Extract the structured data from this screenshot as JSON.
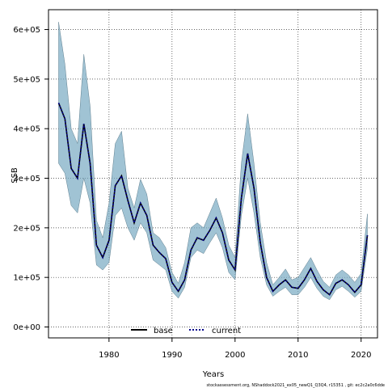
{
  "chart_data": {
    "type": "area",
    "xlabel": "Years",
    "ylabel": "SSB",
    "xlim": [
      1970.4,
      2022.6
    ],
    "ylim": [
      -22000,
      640000
    ],
    "x_ticks": [
      1980,
      1990,
      2000,
      2010,
      2020
    ],
    "x_tick_labels": [
      "1980",
      "1990",
      "2000",
      "2010",
      "2020"
    ],
    "y_ticks": [
      0,
      100000,
      200000,
      300000,
      400000,
      500000,
      600000
    ],
    "y_tick_labels": [
      "0e+00",
      "1e+05",
      "2e+05",
      "3e+05",
      "4e+05",
      "5e+05",
      "6e+05"
    ],
    "grid": true,
    "legend_position": "bottom",
    "x": [
      1972,
      1973,
      1974,
      1975,
      1976,
      1977,
      1978,
      1979,
      1980,
      1981,
      1982,
      1983,
      1984,
      1985,
      1986,
      1987,
      1988,
      1989,
      1990,
      1991,
      1992,
      1993,
      1994,
      1995,
      1996,
      1997,
      1998,
      1999,
      2000,
      2001,
      2002,
      2003,
      2004,
      2005,
      2006,
      2007,
      2008,
      2009,
      2010,
      2011,
      2012,
      2013,
      2014,
      2015,
      2016,
      2017,
      2018,
      2019,
      2020,
      2021
    ],
    "series": [
      {
        "name": "base",
        "style": "solid",
        "color": "#000000",
        "values": [
          452000,
          420000,
          320000,
          300000,
          410000,
          330000,
          165000,
          140000,
          175000,
          285000,
          305000,
          255000,
          210000,
          250000,
          225000,
          165000,
          150000,
          138000,
          90000,
          72000,
          95000,
          155000,
          180000,
          175000,
          195000,
          220000,
          190000,
          135000,
          115000,
          260000,
          350000,
          280000,
          170000,
          100000,
          72000,
          85000,
          95000,
          80000,
          78000,
          95000,
          118000,
          92000,
          75000,
          65000,
          88000,
          95000,
          85000,
          70000,
          85000,
          185000
        ]
      },
      {
        "name": "current",
        "style": "dotted",
        "color": "#00008b",
        "values": [
          452000,
          420000,
          320000,
          300000,
          410000,
          330000,
          165000,
          140000,
          175000,
          285000,
          305000,
          255000,
          210000,
          250000,
          225000,
          165000,
          150000,
          138000,
          90000,
          72000,
          95000,
          155000,
          180000,
          175000,
          195000,
          220000,
          190000,
          135000,
          115000,
          260000,
          350000,
          280000,
          170000,
          100000,
          72000,
          85000,
          95000,
          80000,
          78000,
          95000,
          118000,
          92000,
          75000,
          65000,
          88000,
          95000,
          85000,
          70000,
          85000,
          185000
        ]
      }
    ],
    "band": {
      "color": "#77a9c2",
      "upper": [
        615000,
        530000,
        400000,
        370000,
        550000,
        445000,
        215000,
        180000,
        250000,
        370000,
        395000,
        280000,
        240000,
        298000,
        268000,
        190000,
        180000,
        160000,
        110000,
        88000,
        130000,
        200000,
        210000,
        200000,
        230000,
        260000,
        220000,
        165000,
        140000,
        330000,
        430000,
        330000,
        210000,
        130000,
        85000,
        100000,
        117000,
        95000,
        100000,
        120000,
        140000,
        115000,
        92000,
        80000,
        105000,
        115000,
        105000,
        90000,
        108000,
        228000
      ],
      "lower": [
        330000,
        310000,
        245000,
        230000,
        300000,
        250000,
        125000,
        115000,
        130000,
        225000,
        240000,
        200000,
        175000,
        210000,
        190000,
        135000,
        125000,
        115000,
        72000,
        58000,
        80000,
        140000,
        155000,
        148000,
        170000,
        190000,
        160000,
        110000,
        95000,
        225000,
        300000,
        230000,
        140000,
        85000,
        62000,
        72000,
        80000,
        65000,
        65000,
        80000,
        100000,
        78000,
        62000,
        55000,
        75000,
        82000,
        72000,
        60000,
        72000,
        158000
      ]
    }
  },
  "legend": {
    "items": [
      {
        "label": "base",
        "color": "#000000",
        "style": "solid"
      },
      {
        "label": "current",
        "color": "#00008b",
        "style": "dotted"
      }
    ]
  },
  "footnote": "stockassessment.org, NShaddock2021_ex05_newQ1_Q3Q4, r15351 , git: ec2c2a0c6dde"
}
